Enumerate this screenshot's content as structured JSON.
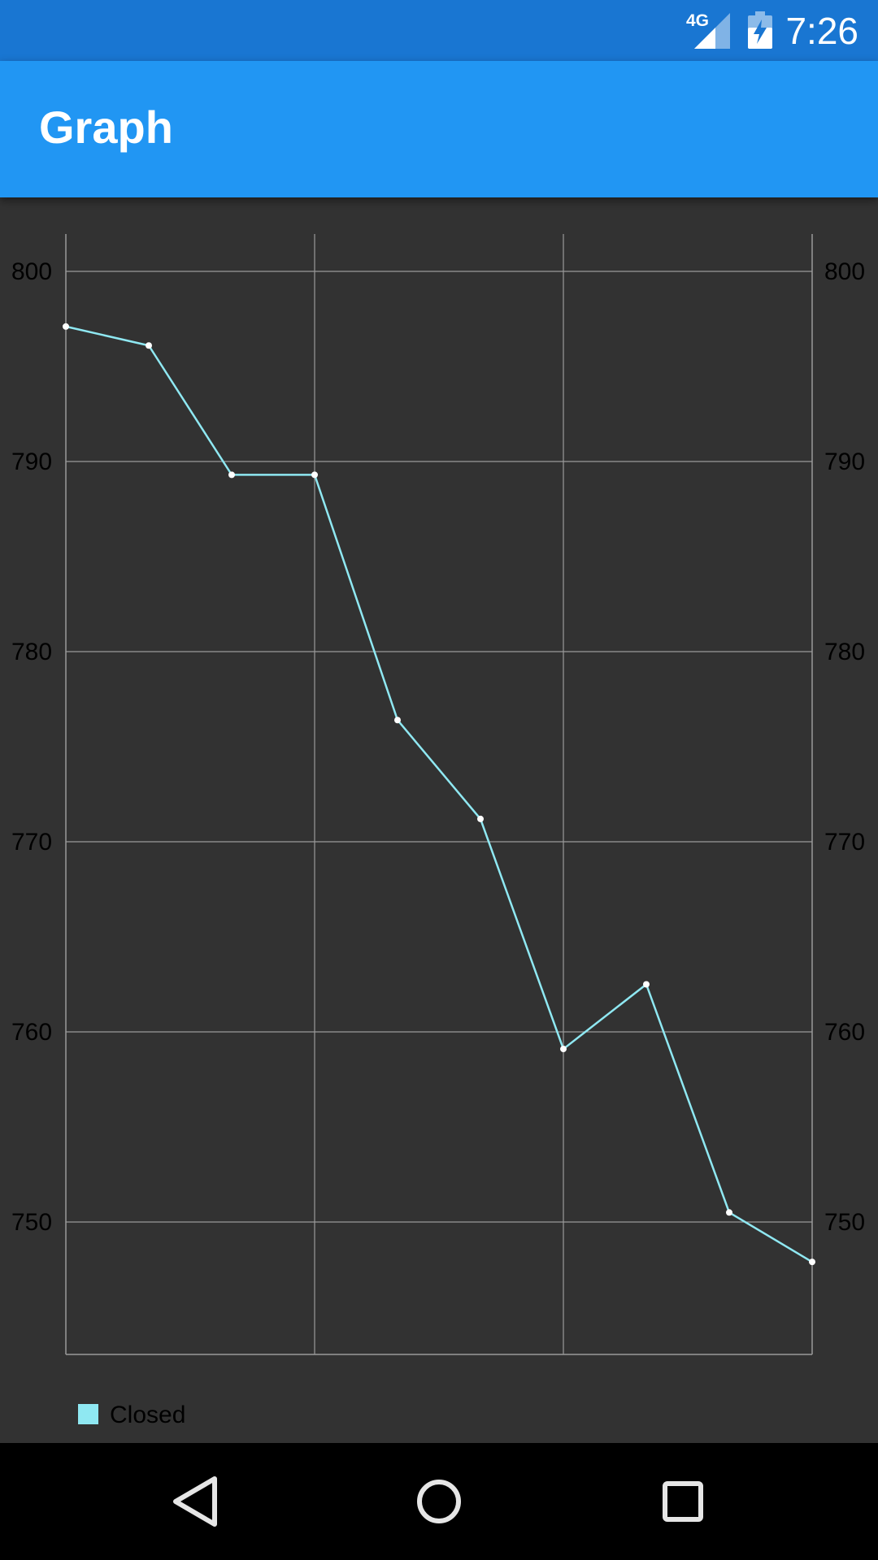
{
  "status_bar": {
    "network_label": "4G",
    "time": "7:26",
    "icons": [
      "signal-icon",
      "battery-charging-icon"
    ]
  },
  "app_bar": {
    "title": "Graph"
  },
  "colors": {
    "status_bar": "#1976d2",
    "app_bar": "#2196f3",
    "background": "#323232",
    "grid": "#9a9a9a",
    "series": "#8fe8f2",
    "nav_bar": "#000000"
  },
  "chart_data": {
    "type": "line",
    "title": "",
    "xlabel": "",
    "ylabel": "",
    "y_ticks": [
      "800",
      "790",
      "780",
      "770",
      "760",
      "750"
    ],
    "y_tick_values": [
      800,
      790,
      780,
      770,
      760,
      750
    ],
    "ylim": [
      743,
      802
    ],
    "x_count": 10,
    "x_grid_every": 3,
    "grid": true,
    "dual_y_axis": true,
    "legend_position": "bottom-left",
    "series": [
      {
        "name": "Closed",
        "color": "#8fe8f2",
        "values": [
          797.1,
          796.1,
          789.3,
          789.3,
          776.4,
          771.2,
          759.1,
          762.5,
          750.5,
          747.9
        ]
      }
    ]
  },
  "nav_bar": {
    "buttons": [
      "back",
      "home",
      "recents"
    ]
  }
}
